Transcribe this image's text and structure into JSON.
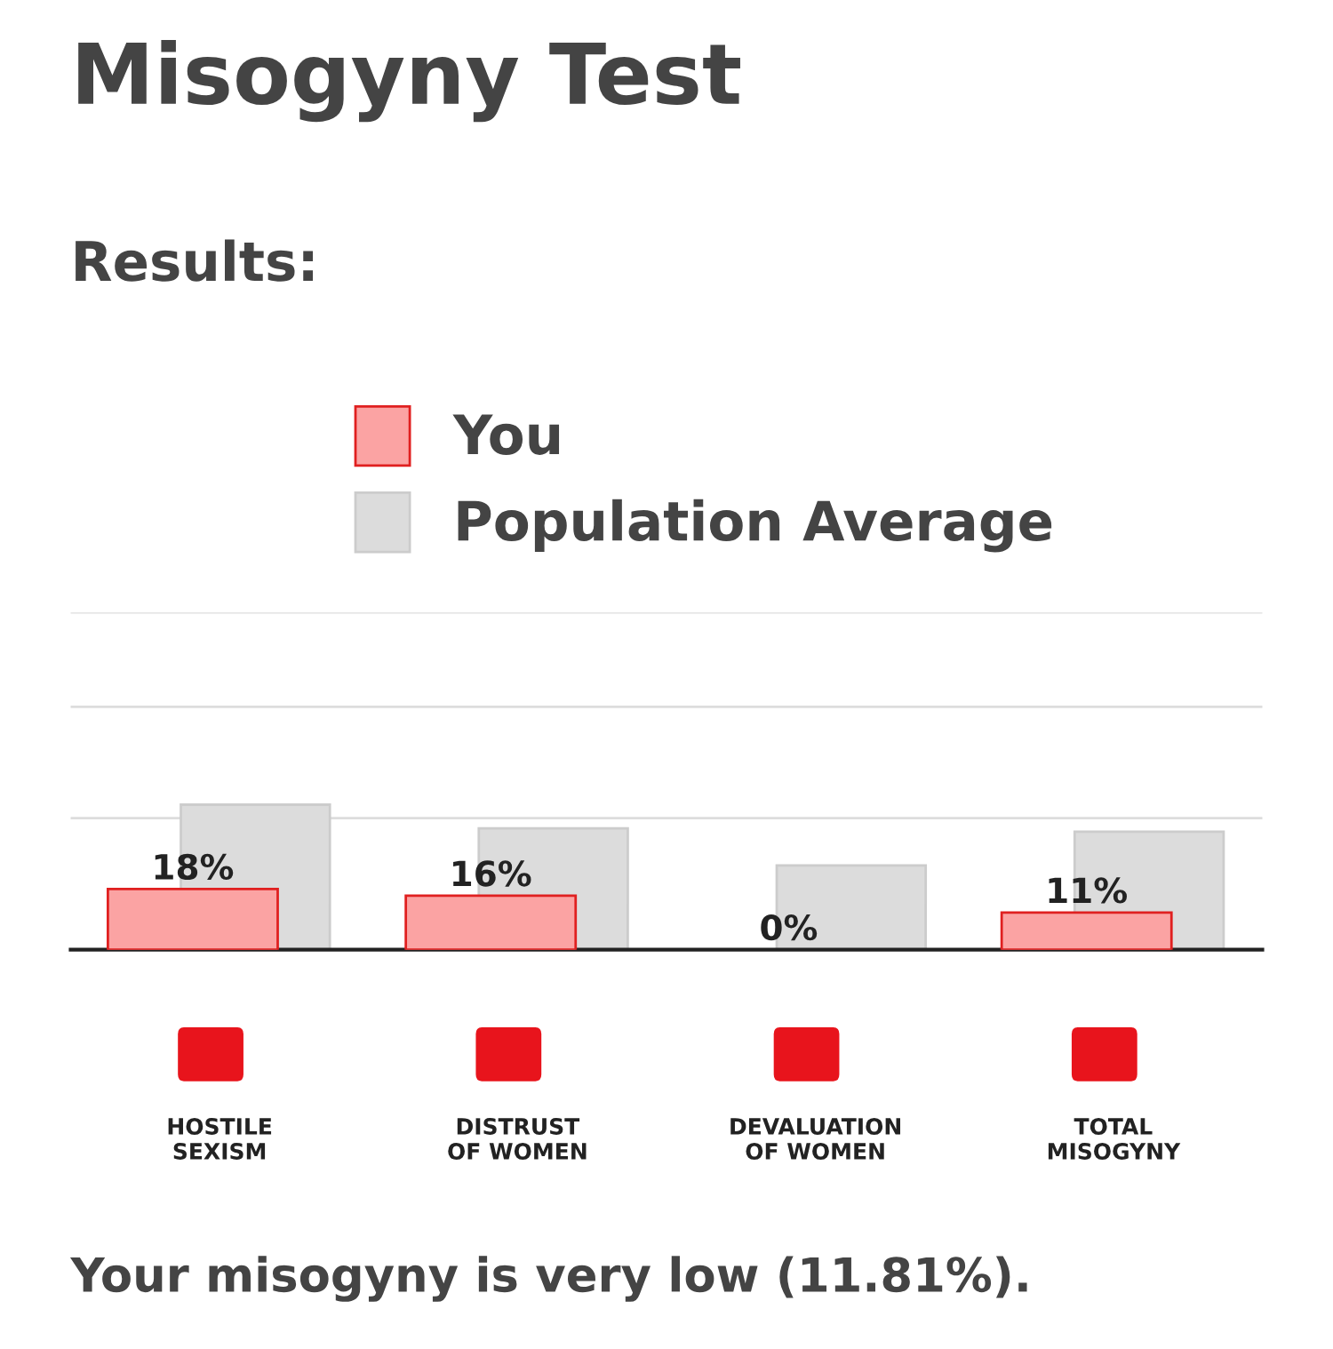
{
  "chart_data": {
    "type": "bar",
    "title": "Misogyny Test",
    "subtitle": "Results:",
    "categories": [
      "HOSTILE\nSEXISM",
      "DISTRUST\nOF WOMEN",
      "DEVALUATION\nOF WOMEN",
      "TOTAL\nMISOGYNY"
    ],
    "series": [
      {
        "name": "You",
        "color": "#fba3a3",
        "values": [
          18,
          16,
          0,
          11
        ],
        "value_labels": [
          "18%",
          "16%",
          "0%",
          "11%"
        ]
      },
      {
        "name": "Population Average",
        "color": "#dcdcdc",
        "values": [
          43,
          36,
          25,
          35
        ]
      }
    ],
    "ylim": [
      0,
      100
    ],
    "yticks": [
      {
        "value": 39,
        "label": null
      },
      {
        "value": 72,
        "label": null
      },
      {
        "value": 100,
        "label": null
      }
    ],
    "grid": "y",
    "legend": "top",
    "annotations": [
      "Your misogyny is very low (11.81%)."
    ]
  }
}
